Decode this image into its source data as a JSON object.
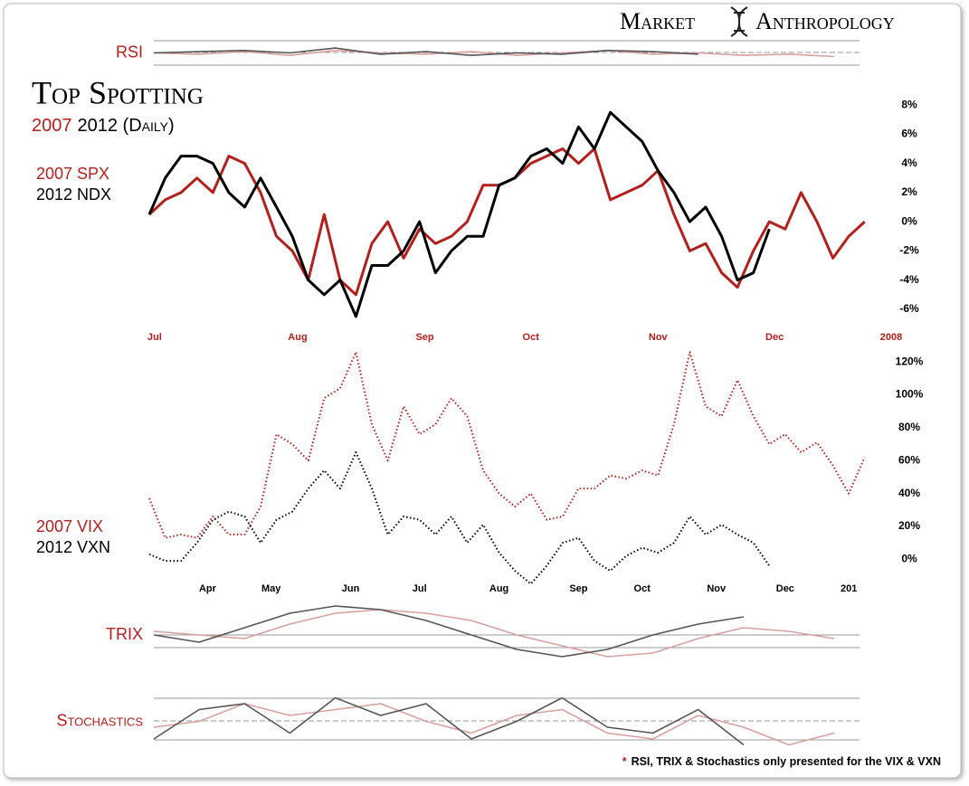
{
  "header": {
    "brand_left": "Market",
    "brand_right": "Anthropology"
  },
  "chart_data": [
    {
      "type": "line",
      "label": "RSI",
      "xlim": [
        0,
        140
      ],
      "ylim": [
        0,
        100
      ],
      "x": [
        0,
        9,
        18,
        27,
        36,
        45,
        54,
        63,
        72,
        81,
        90,
        99,
        108,
        117,
        126,
        135
      ],
      "series": [
        {
          "color": "#d9a0a0",
          "values": [
            50,
            45,
            55,
            40,
            60,
            50,
            45,
            55,
            40,
            50,
            60,
            45,
            50,
            40,
            45,
            35
          ]
        },
        {
          "color": "#555555",
          "values": [
            50,
            55,
            60,
            50,
            70,
            45,
            55,
            40,
            50,
            45,
            60,
            55,
            45,
            null,
            null,
            null
          ]
        }
      ]
    },
    {
      "type": "line",
      "title": "Top Spotting",
      "subtitle": [
        "2007",
        "2012 (Daily)"
      ],
      "xlim": [
        0,
        140
      ],
      "ylim": [
        -7,
        9
      ],
      "xticks": [
        {
          "value": 1,
          "label": "Jul"
        },
        {
          "value": 28,
          "label": "Aug"
        },
        {
          "value": 52,
          "label": "Sep"
        },
        {
          "value": 72,
          "label": "Oct"
        },
        {
          "value": 96,
          "label": "Nov"
        },
        {
          "value": 118,
          "label": "Dec"
        },
        {
          "value": 140,
          "label": "2008"
        }
      ],
      "xtick_color": "#b3201c",
      "yticks": [
        {
          "value": 8,
          "label": "8%"
        },
        {
          "value": 6,
          "label": "6%"
        },
        {
          "value": 4,
          "label": "4%"
        },
        {
          "value": 2,
          "label": "2%"
        },
        {
          "value": 0,
          "label": "0%"
        },
        {
          "value": -2,
          "label": "-2%"
        },
        {
          "value": -4,
          "label": "-4%"
        },
        {
          "value": -6,
          "label": "-6%"
        }
      ],
      "x": [
        0,
        3,
        6,
        9,
        12,
        15,
        18,
        21,
        24,
        27,
        30,
        33,
        36,
        39,
        42,
        45,
        48,
        51,
        54,
        57,
        60,
        63,
        66,
        69,
        72,
        75,
        78,
        81,
        84,
        87,
        90,
        93,
        96,
        99,
        102,
        105,
        108,
        111,
        114,
        117,
        120,
        123,
        126,
        129,
        132,
        135
      ],
      "series": [
        {
          "name": "2007 SPX",
          "color": "#b3201c",
          "values": [
            0.5,
            1.5,
            2,
            3,
            2,
            4.5,
            4,
            2,
            -1,
            -2,
            -4,
            0.5,
            -4,
            -5,
            -1.5,
            0,
            -2.5,
            -0.5,
            -1.5,
            -1,
            0,
            2.5,
            2.5,
            3,
            4,
            4.5,
            5,
            4,
            5,
            1.5,
            2,
            2.5,
            3.5,
            0.5,
            -2,
            -1.5,
            -3.5,
            -4.5,
            -2,
            0,
            -0.5,
            2,
            0,
            -2.5,
            -1,
            0
          ]
        },
        {
          "name": "2012 NDX",
          "color": "#000000",
          "values": [
            0.5,
            3,
            4.5,
            4.5,
            4,
            2,
            1,
            3,
            1,
            -1,
            -4,
            -5,
            -4,
            -6.5,
            -3,
            -3,
            -2,
            0,
            -3.5,
            -2,
            -1,
            -1,
            2.5,
            3,
            4.5,
            5,
            4,
            6.5,
            5,
            7.5,
            6.5,
            5.5,
            3.5,
            2,
            0,
            1,
            -1,
            -4,
            -3.5,
            -0.5,
            null,
            null,
            null,
            null,
            null,
            null
          ]
        }
      ]
    },
    {
      "type": "line",
      "line_style": "dotted",
      "xlim": [
        0,
        140
      ],
      "ylim": [
        -18,
        130
      ],
      "xticks": [
        {
          "value": 11,
          "label": "Apr"
        },
        {
          "value": 23,
          "label": "May"
        },
        {
          "value": 38,
          "label": "Jun"
        },
        {
          "value": 51,
          "label": "Jul"
        },
        {
          "value": 66,
          "label": "Aug"
        },
        {
          "value": 81,
          "label": "Sep"
        },
        {
          "value": 93,
          "label": "Oct"
        },
        {
          "value": 107,
          "label": "Nov"
        },
        {
          "value": 120,
          "label": "Dec"
        },
        {
          "value": 132,
          "label": "201"
        }
      ],
      "xtick_color": "#000000",
      "yticks": [
        {
          "value": 120,
          "label": "120%"
        },
        {
          "value": 100,
          "label": "100%"
        },
        {
          "value": 80,
          "label": "80%"
        },
        {
          "value": 60,
          "label": "60%"
        },
        {
          "value": 40,
          "label": "40%"
        },
        {
          "value": 20,
          "label": "20%"
        },
        {
          "value": 0,
          "label": "0%"
        }
      ],
      "x": [
        0,
        3,
        6,
        9,
        12,
        15,
        18,
        21,
        24,
        27,
        30,
        33,
        36,
        39,
        42,
        45,
        48,
        51,
        54,
        57,
        60,
        63,
        66,
        69,
        72,
        75,
        78,
        81,
        84,
        87,
        90,
        93,
        96,
        99,
        102,
        105,
        108,
        111,
        114,
        117,
        120,
        123,
        126,
        129,
        132,
        135
      ],
      "series": [
        {
          "name": "2007 VIX",
          "color": "#b3201c",
          "values": [
            37,
            13,
            15,
            13,
            26,
            15,
            15,
            32,
            76,
            70,
            60,
            98,
            104,
            126,
            82,
            60,
            93,
            76,
            82,
            98,
            87,
            54,
            40,
            32,
            40,
            24,
            26,
            43,
            43,
            51,
            49,
            54,
            51,
            82,
            126,
            93,
            87,
            109,
            87,
            70,
            76,
            65,
            71,
            57,
            40,
            62
          ]
        },
        {
          "name": "2012 VXN",
          "color": "#000000",
          "values": [
            3,
            -1,
            -1,
            10,
            24,
            29,
            26,
            10,
            24,
            29,
            43,
            54,
            43,
            65,
            43,
            15,
            26,
            24,
            15,
            26,
            10,
            21,
            4,
            -7,
            -15,
            -4,
            10,
            13,
            -1,
            -7,
            2,
            7,
            4,
            10,
            26,
            15,
            21,
            15,
            10,
            -4,
            null,
            null,
            null,
            null,
            null,
            null
          ]
        }
      ]
    },
    {
      "type": "line",
      "label": "TRIX",
      "xlim": [
        0,
        140
      ],
      "ylim": [
        -10,
        10
      ],
      "x": [
        0,
        9,
        18,
        27,
        36,
        45,
        54,
        63,
        72,
        81,
        90,
        99,
        108,
        117,
        126,
        135
      ],
      "series": [
        {
          "color": "#d9a0a0",
          "values": [
            1,
            0,
            -1,
            3,
            6,
            7,
            6,
            4,
            0,
            -3,
            -6,
            -5,
            -1,
            2,
            1,
            -1
          ]
        },
        {
          "color": "#555555",
          "values": [
            0,
            -2,
            2,
            6,
            8,
            7,
            4,
            0,
            -4,
            -6,
            -4,
            0,
            3,
            5,
            null,
            null
          ]
        }
      ]
    },
    {
      "type": "line",
      "label": "Stochastics",
      "xlim": [
        0,
        140
      ],
      "ylim": [
        0,
        100
      ],
      "x": [
        0,
        9,
        18,
        27,
        36,
        45,
        54,
        63,
        72,
        81,
        90,
        99,
        108,
        117,
        126,
        135
      ],
      "series": [
        {
          "color": "#d9a0a0",
          "values": [
            40,
            50,
            80,
            60,
            70,
            80,
            50,
            30,
            60,
            70,
            30,
            20,
            60,
            40,
            10,
            30
          ]
        },
        {
          "color": "#555555",
          "values": [
            20,
            70,
            80,
            30,
            90,
            60,
            80,
            20,
            50,
            90,
            40,
            30,
            70,
            10,
            null,
            null
          ]
        }
      ]
    }
  ],
  "note": {
    "mark": "*",
    "text": "RSI, TRIX & Stochastics only presented for the VIX & VXN"
  }
}
